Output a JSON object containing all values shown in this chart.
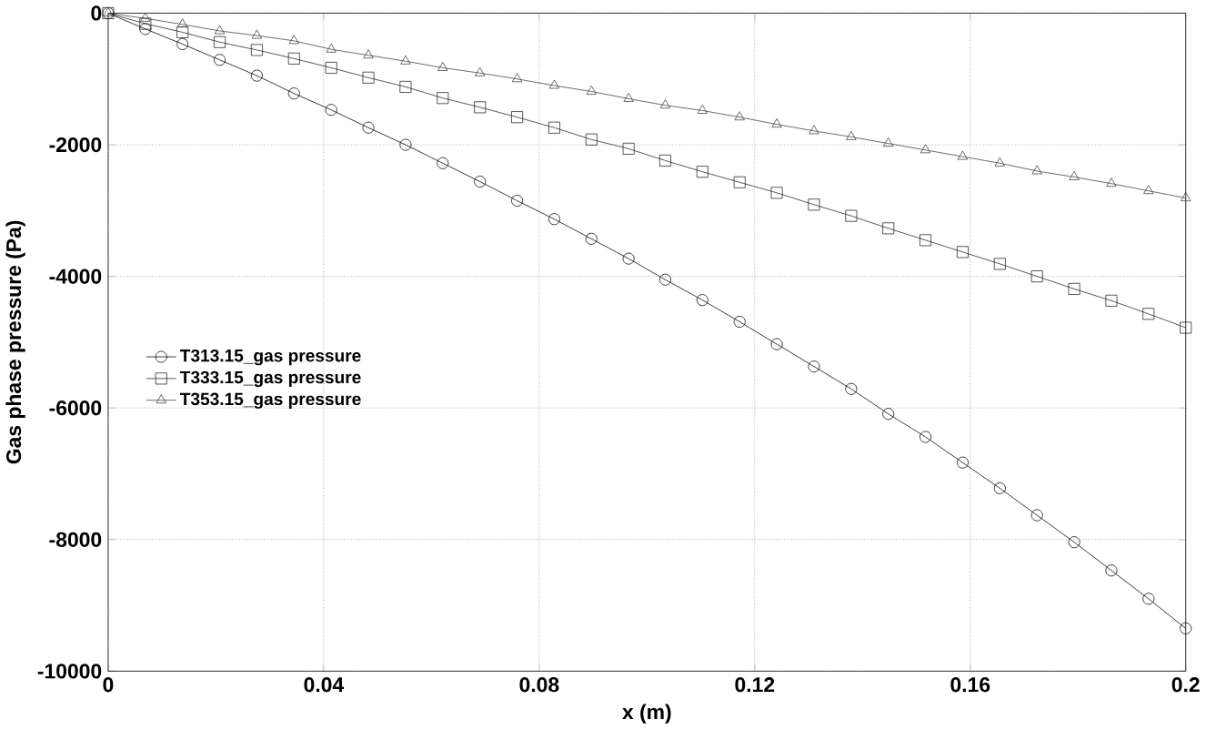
{
  "chart_data": {
    "type": "line",
    "xlabel": "x (m)",
    "ylabel": "Gas phase pressure (Pa)",
    "x": [
      0,
      0.0069,
      0.0138,
      0.0207,
      0.0276,
      0.0345,
      0.0414,
      0.0483,
      0.0552,
      0.0621,
      0.069,
      0.0759,
      0.0828,
      0.0897,
      0.0966,
      0.1034,
      0.1103,
      0.1172,
      0.1241,
      0.131,
      0.1379,
      0.1448,
      0.1517,
      0.1586,
      0.1655,
      0.1724,
      0.1793,
      0.1862,
      0.1931,
      0.2
    ],
    "series": [
      {
        "name": "T313.15_gas pressure",
        "color": "#000000",
        "marker": "circle",
        "values": [
          0,
          -240,
          -470,
          -710,
          -950,
          -1220,
          -1470,
          -1740,
          -2000,
          -2280,
          -2560,
          -2850,
          -3130,
          -3430,
          -3730,
          -4050,
          -4360,
          -4690,
          -5030,
          -5370,
          -5710,
          -6090,
          -6440,
          -6830,
          -7220,
          -7630,
          -8040,
          -8470,
          -8900,
          -9350
        ]
      },
      {
        "name": "T333.15_gas pressure",
        "color": "#262626",
        "marker": "square",
        "values": [
          0,
          -160,
          -290,
          -440,
          -560,
          -690,
          -830,
          -980,
          -1120,
          -1290,
          -1430,
          -1580,
          -1740,
          -1920,
          -2060,
          -2240,
          -2410,
          -2570,
          -2730,
          -2910,
          -3080,
          -3270,
          -3450,
          -3630,
          -3810,
          -4000,
          -4190,
          -4370,
          -4570,
          -4780
        ]
      },
      {
        "name": "T353.15_gas pressure",
        "color": "#404040",
        "marker": "triangle",
        "values": [
          0,
          -80,
          -170,
          -270,
          -340,
          -420,
          -550,
          -640,
          -730,
          -830,
          -910,
          -1000,
          -1100,
          -1190,
          -1300,
          -1400,
          -1480,
          -1580,
          -1690,
          -1790,
          -1880,
          -1980,
          -2080,
          -2180,
          -2280,
          -2400,
          -2490,
          -2590,
          -2700,
          -2810
        ]
      }
    ],
    "xlim": [
      0,
      0.2
    ],
    "ylim": [
      -10000,
      0
    ],
    "xticks": [
      0,
      0.04,
      0.08,
      0.12,
      0.16,
      0.2
    ],
    "yticks": [
      -10000,
      -8000,
      -6000,
      -4000,
      -2000,
      0
    ],
    "grid": true,
    "legend": "left",
    "line_style": "solid"
  }
}
